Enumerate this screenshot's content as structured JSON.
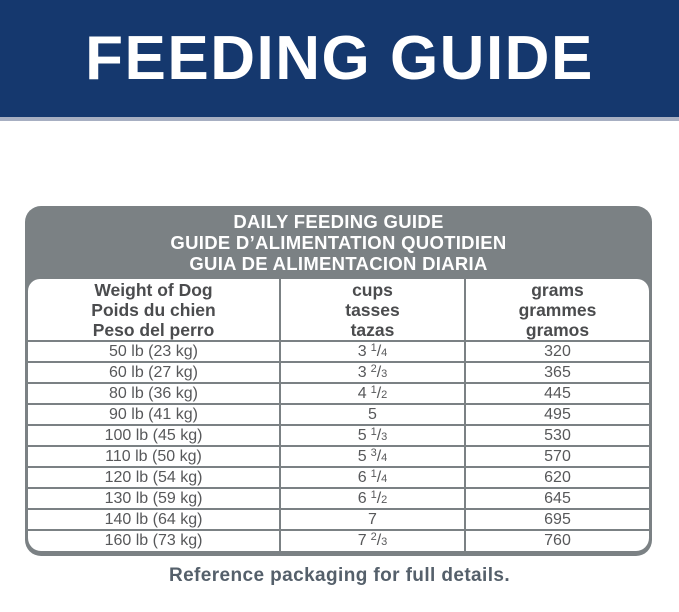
{
  "colors": {
    "navy": "#15386e",
    "banner-edge": "#a7afc2",
    "gray": "#7b8184",
    "header-text": "#ffffff",
    "col-header-text": "#4b4c4e",
    "cell-text": "#57585a",
    "footer-text": "#55606b"
  },
  "banner": {
    "title": "FEEDING GUIDE"
  },
  "table": {
    "title_lines": [
      "DAILY FEEDING GUIDE",
      "GUIDE D’ALIMENTATION QUOTIDIEN",
      "GUIA DE ALIMENTACION DIARIA"
    ],
    "columns": [
      {
        "lines": [
          "Weight of Dog",
          "Poids du chien",
          "Peso del perro"
        ]
      },
      {
        "lines": [
          "cups",
          "tasses",
          "tazas"
        ]
      },
      {
        "lines": [
          "grams",
          "grammes",
          "gramos"
        ]
      }
    ],
    "rows": [
      {
        "weight": "50 lb (23 kg)",
        "cups": {
          "whole": "3",
          "num": "1",
          "den": "4"
        },
        "grams": "320"
      },
      {
        "weight": "60 lb (27 kg)",
        "cups": {
          "whole": "3",
          "num": "2",
          "den": "3"
        },
        "grams": "365"
      },
      {
        "weight": "80 lb (36 kg)",
        "cups": {
          "whole": "4",
          "num": "1",
          "den": "2"
        },
        "grams": "445"
      },
      {
        "weight": "90 lb (41 kg)",
        "cups": {
          "whole": "5"
        },
        "grams": "495"
      },
      {
        "weight": "100 lb (45 kg)",
        "cups": {
          "whole": "5",
          "num": "1",
          "den": "3"
        },
        "grams": "530"
      },
      {
        "weight": "110 lb (50 kg)",
        "cups": {
          "whole": "5",
          "num": "3",
          "den": "4"
        },
        "grams": "570"
      },
      {
        "weight": "120 lb (54 kg)",
        "cups": {
          "whole": "6",
          "num": "1",
          "den": "4"
        },
        "grams": "620"
      },
      {
        "weight": "130 lb (59 kg)",
        "cups": {
          "whole": "6",
          "num": "1",
          "den": "2"
        },
        "grams": "645"
      },
      {
        "weight": "140 lb (64 kg)",
        "cups": {
          "whole": "7"
        },
        "grams": "695"
      },
      {
        "weight": "160 lb (73 kg)",
        "cups": {
          "whole": "7",
          "num": "2",
          "den": "3"
        },
        "grams": "760"
      }
    ]
  },
  "footer": {
    "note": "Reference packaging for full details."
  }
}
